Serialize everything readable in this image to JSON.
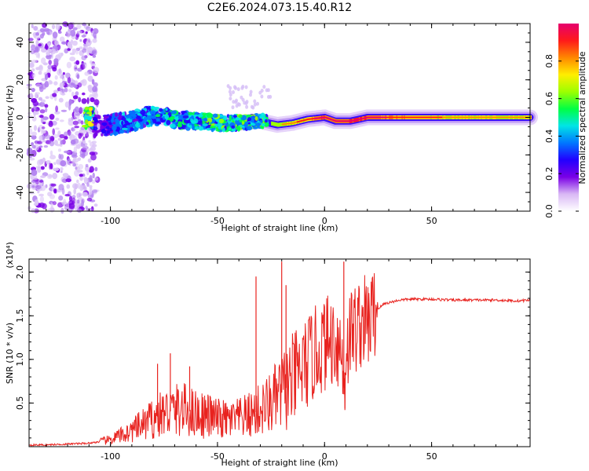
{
  "figure_title": "C2E6.2024.073.15.40.R12",
  "chart_data": [
    {
      "type": "heatmap",
      "title": "C2E6.2024.073.15.40.R12",
      "xlabel": "Height of straight line (km)",
      "ylabel": "Frequency (Hz)",
      "xlim": [
        -138,
        96
      ],
      "ylim": [
        -50,
        50
      ],
      "x_ticks": [
        -100,
        -50,
        0,
        50
      ],
      "y_ticks": [
        -40,
        -20,
        0,
        20,
        40
      ],
      "colorbar": {
        "label": "Normalized spectral amplitude",
        "range": [
          0,
          1
        ],
        "ticks": [
          "0.0",
          "0.2",
          "0.4",
          "0.6",
          "0.8"
        ],
        "colors": [
          "#ffffff",
          "#d9b8f5",
          "#7a00e6",
          "#2200ff",
          "#0077ff",
          "#00e5e5",
          "#00ff44",
          "#9cff00",
          "#ffee00",
          "#ff8800",
          "#ff1a1a",
          "#e6006e"
        ]
      },
      "ridge": [
        {
          "x": -108,
          "freq": -5,
          "amp": 0.25
        },
        {
          "x": -100,
          "freq": -4,
          "amp": 0.35
        },
        {
          "x": -90,
          "freq": -2,
          "amp": 0.45
        },
        {
          "x": -80,
          "freq": 1,
          "amp": 0.5
        },
        {
          "x": -70,
          "freq": -1,
          "amp": 0.55
        },
        {
          "x": -60,
          "freq": -2,
          "amp": 0.55
        },
        {
          "x": -50,
          "freq": -3,
          "amp": 0.6
        },
        {
          "x": -40,
          "freq": -3,
          "amp": 0.6
        },
        {
          "x": -30,
          "freq": -2,
          "amp": 0.6
        },
        {
          "x": -22,
          "freq": -4,
          "amp": 0.65
        },
        {
          "x": -15,
          "freq": -3,
          "amp": 0.7
        },
        {
          "x": -8,
          "freq": -1,
          "amp": 0.75
        },
        {
          "x": 0,
          "freq": 0,
          "amp": 0.9
        },
        {
          "x": 5,
          "freq": -2,
          "amp": 0.85
        },
        {
          "x": 12,
          "freq": -2,
          "amp": 0.9
        },
        {
          "x": 20,
          "freq": 0,
          "amp": 0.85
        },
        {
          "x": 40,
          "freq": 0,
          "amp": 0.75
        },
        {
          "x": 60,
          "freq": 0,
          "amp": 0.7
        },
        {
          "x": 80,
          "freq": 0,
          "amp": 0.7
        },
        {
          "x": 96,
          "freq": 0,
          "amp": 0.7
        }
      ],
      "noise_region": {
        "x_from": -138,
        "x_to": -106
      }
    },
    {
      "type": "line",
      "xlabel": "Height of straight line (km)",
      "ylabel": "SNR (10 * v/v)",
      "y_scale_label": "(x10⁴)",
      "xlim": [
        -138,
        96
      ],
      "ylim": [
        0,
        2.15
      ],
      "x_ticks": [
        -100,
        -50,
        0,
        50
      ],
      "y_ticks": [
        0.5,
        1.0,
        1.5,
        2.0
      ],
      "color": "#e8231f",
      "series": [
        {
          "x": [
            -138,
            -130,
            -120,
            -110,
            -104,
            -100,
            -95,
            -90,
            -85,
            -80,
            -75,
            -70,
            -65,
            -60,
            -55,
            -50,
            -45,
            -40,
            -35,
            -30,
            -25,
            -20,
            -15,
            -10,
            -5,
            0,
            5,
            8,
            9,
            10,
            12,
            15,
            18,
            20,
            22,
            25,
            28,
            30,
            35,
            40,
            45,
            50,
            60,
            70,
            80,
            90,
            96
          ],
          "y": [
            0.02,
            0.02,
            0.03,
            0.04,
            0.06,
            0.08,
            0.13,
            0.18,
            0.25,
            0.32,
            0.38,
            0.42,
            0.42,
            0.38,
            0.36,
            0.32,
            0.3,
            0.32,
            0.36,
            0.42,
            0.5,
            0.62,
            0.75,
            0.9,
            1.05,
            1.18,
            1.25,
            1.1,
            0.6,
            1.1,
            1.3,
            1.38,
            1.45,
            1.4,
            1.5,
            1.58,
            1.64,
            1.65,
            1.68,
            1.69,
            1.69,
            1.69,
            1.68,
            1.68,
            1.68,
            1.67,
            1.68
          ]
        }
      ],
      "spikes": [
        {
          "x": -78,
          "y": 0.95
        },
        {
          "x": -72,
          "y": 1.07
        },
        {
          "x": -63,
          "y": 0.92
        },
        {
          "x": -32,
          "y": 1.95
        },
        {
          "x": -20,
          "y": 2.12
        },
        {
          "x": -18,
          "y": 1.85
        },
        {
          "x": 9,
          "y": 2.12
        },
        {
          "x": 9.5,
          "y": 0.42
        }
      ]
    }
  ]
}
